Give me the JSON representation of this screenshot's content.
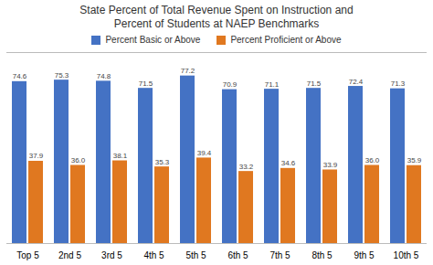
{
  "chart_data": {
    "type": "bar",
    "title": "State Percent of Total Revenue Spent on Instruction and\nPercent of Students at NAEP Benchmarks",
    "categories": [
      "Top 5",
      "2nd 5",
      "3rd 5",
      "4th 5",
      "5th 5",
      "6th 5",
      "7th 5",
      "8th 5",
      "9th 5",
      "10th 5"
    ],
    "series": [
      {
        "name": "Percent Basic or Above",
        "color": "#4472C4",
        "values": [
          74.6,
          75.3,
          74.8,
          71.5,
          77.2,
          70.9,
          71.1,
          71.5,
          72.4,
          71.3
        ],
        "value_labels": [
          "74.6",
          "75.3",
          "74.8",
          "71.5",
          "77.2",
          "70.9",
          "71.1",
          "71.5",
          "72.4",
          "71.3"
        ]
      },
      {
        "name": "Percent Proficient or Above",
        "color": "#E07820",
        "values": [
          37.9,
          36.0,
          38.1,
          35.3,
          39.4,
          33.2,
          34.6,
          33.9,
          36.0,
          35.9
        ],
        "value_labels": [
          "37.9",
          "36.0",
          "38.1",
          "35.3",
          "39.4",
          "33.2",
          "34.6",
          "33.9",
          "36.0",
          "35.9"
        ]
      }
    ],
    "ylim": [
      0,
      88
    ],
    "data_labels": true,
    "tick_labels": "x",
    "legend": "top"
  }
}
